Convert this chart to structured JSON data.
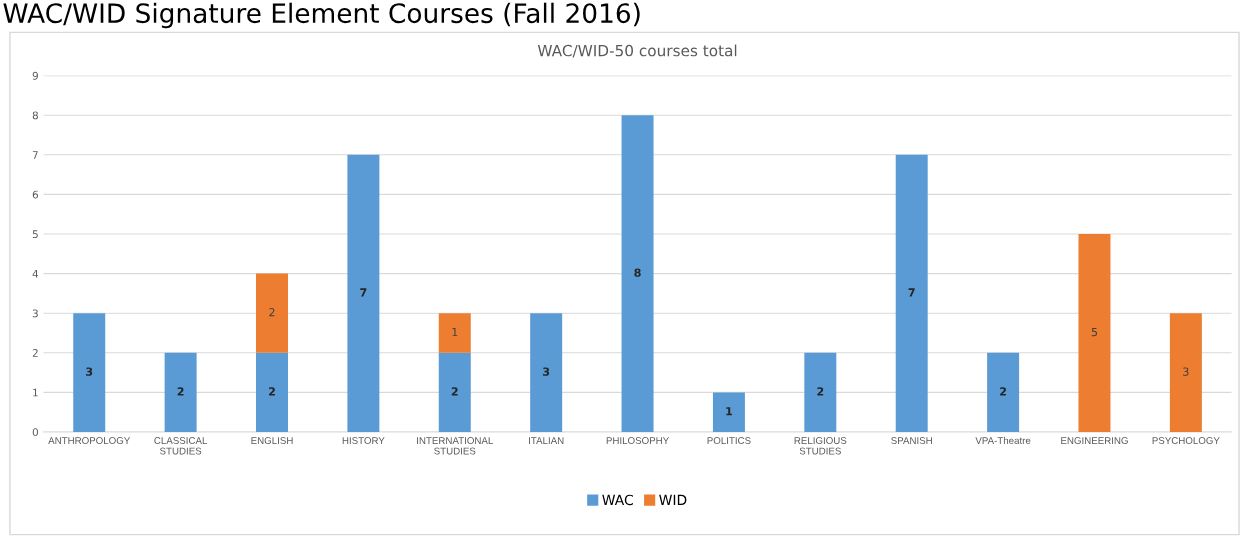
{
  "chart_data": {
    "type": "bar",
    "title": "WAC/WID Signature Element Courses (Fall 2016)",
    "subtitle": "WAC/WID-50 courses total",
    "categories": [
      "ANTHROPOLOGY",
      "CLASSICAL STUDIES",
      "ENGLISH",
      "HISTORY",
      "INTERNATIONAL\nSTUDIES",
      "ITALIAN",
      "PHILOSOPHY",
      "POLITICS",
      "RELIGIOUS\nSTUDIES",
      "SPANISH",
      "VPA-Theatre",
      "ENGINEERING",
      "PSYCHOLOGY"
    ],
    "series": [
      {
        "name": "WAC",
        "color": "#5b9bd5",
        "values": [
          3,
          2,
          2,
          7,
          2,
          3,
          8,
          1,
          2,
          7,
          2,
          null,
          null
        ],
        "value_labels": [
          "3",
          "2",
          "2",
          "7",
          "2",
          "3",
          "8",
          "1",
          "2",
          "7",
          "2",
          null,
          null
        ]
      },
      {
        "name": "WID",
        "color": "#ed7d31",
        "values": [
          null,
          null,
          2,
          null,
          1,
          null,
          null,
          null,
          null,
          null,
          null,
          5,
          3
        ],
        "value_labels": [
          null,
          null,
          "2",
          null,
          "1",
          null,
          null,
          null,
          null,
          null,
          null,
          "5",
          "3"
        ]
      }
    ],
    "stacked": true,
    "ylim": [
      0,
      9
    ],
    "yticks": [
      0,
      1,
      2,
      3,
      4,
      5,
      6,
      7,
      8,
      9
    ],
    "grid": "y",
    "legend": "bottom"
  }
}
